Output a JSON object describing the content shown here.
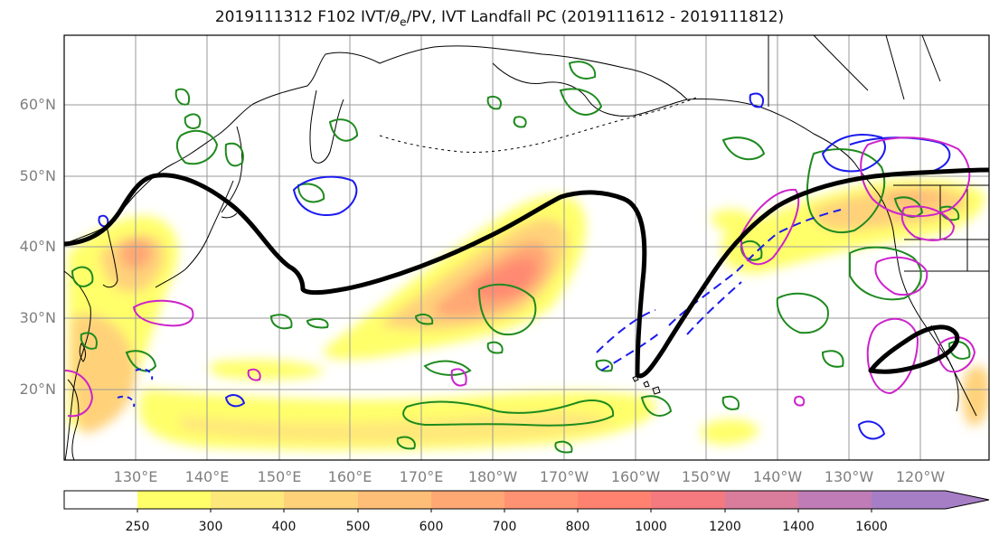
{
  "title": {
    "prefix": "2019111312 F102 IVT/",
    "theta_symbol": "θ",
    "theta_sub": "e",
    "suffix": "/PV, IVT Landfall PC (2019111612 - 2019111812)"
  },
  "axes": {
    "lat_labels": [
      "60°N",
      "50°N",
      "40°N",
      "30°N",
      "20°N"
    ],
    "lon_labels": [
      "130°E",
      "140°E",
      "150°E",
      "160°E",
      "170°E",
      "180°W",
      "170°W",
      "160°W",
      "150°W",
      "140°W",
      "130°W",
      "120°W"
    ]
  },
  "colorbar": {
    "ticks": [
      "250",
      "300",
      "400",
      "500",
      "600",
      "700",
      "800",
      "1000",
      "1200",
      "1400",
      "1600"
    ],
    "colors": [
      "#ffff6a",
      "#ffe87a",
      "#ffd27a",
      "#ffbe78",
      "#ffa874",
      "#ff9272",
      "#ff8270",
      "#f47a80",
      "#da7c9c",
      "#c07cb6",
      "#a67ec6"
    ]
  },
  "legend_colors": {
    "jet_contour": "#000000",
    "positive_contour": "#cc22cc",
    "negative_contour": "#1a1aee",
    "pv_contour": "#1e8a1e",
    "background_ocean": "#ffffff"
  }
}
